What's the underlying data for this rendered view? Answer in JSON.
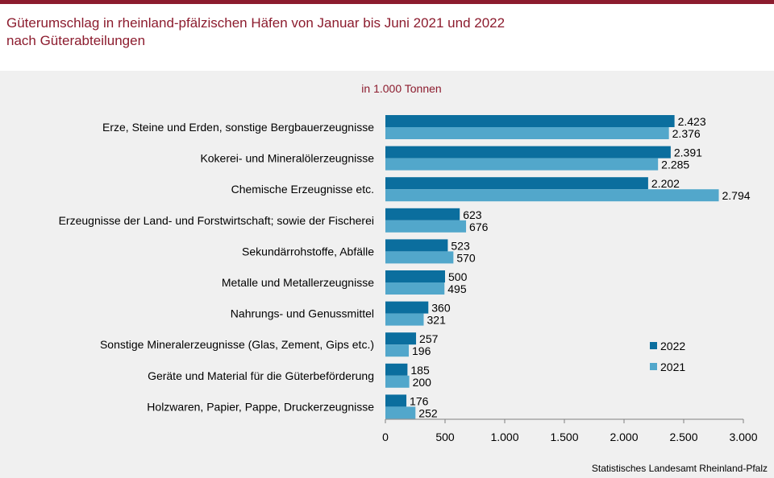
{
  "header": {
    "title_line1": "Güterumschlag in rheinland-pfälzischen Häfen von Januar bis Juni 2021 und 2022",
    "title_line2": "nach Güterabteilungen"
  },
  "footer": {
    "source": "Statistisches Landesamt Rheinland-Pfalz"
  },
  "colors": {
    "accent": "#8c1c2e",
    "series_2022": "#0b6e9e",
    "series_2021": "#52a7cb",
    "panel": "#f0f0f0"
  },
  "chart_data": {
    "type": "bar",
    "orientation": "horizontal",
    "unit_label": "in 1.000 Tonnen",
    "categories": [
      "Erze, Steine und Erden, sonstige Bergbauerzeugnisse",
      "Kokerei- und Mineralölerzeugnisse",
      "Chemische Erzeugnisse etc.",
      "Erzeugnisse der Land- und Forstwirtschaft; sowie der Fischerei",
      "Sekundärrohstoffe, Abfälle",
      "Metalle und Metallerzeugnisse",
      "Nahrungs- und Genussmittel",
      "Sonstige Mineralerzeugnisse (Glas, Zement, Gips etc.)",
      "Geräte und Material für die Güterbeförderung",
      "Holzwaren, Papier, Pappe, Druckerzeugnisse"
    ],
    "series": [
      {
        "name": "2022",
        "values": [
          2423,
          2391,
          2202,
          623,
          523,
          500,
          360,
          257,
          185,
          176
        ],
        "labels": [
          "2.423",
          "2.391",
          "2.202",
          "623",
          "523",
          "500",
          "360",
          "257",
          "185",
          "176"
        ]
      },
      {
        "name": "2021",
        "values": [
          2376,
          2285,
          2794,
          676,
          570,
          495,
          321,
          196,
          200,
          252
        ],
        "labels": [
          "2.376",
          "2.285",
          "2.794",
          "676",
          "570",
          "495",
          "321",
          "196",
          "200",
          "252"
        ]
      }
    ],
    "xlim": [
      0,
      3000
    ],
    "ticks": [
      0,
      500,
      1000,
      1500,
      2000,
      2500,
      3000
    ],
    "tick_labels": [
      "0",
      "500",
      "1.000",
      "1.500",
      "2.000",
      "2.500",
      "3.000"
    ],
    "legend": [
      "2022",
      "2021"
    ],
    "legend_position": "right",
    "grid": false
  }
}
